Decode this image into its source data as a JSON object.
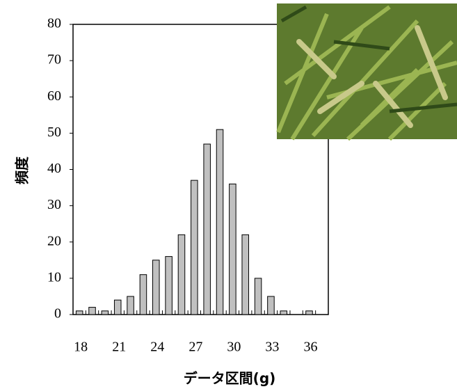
{
  "chart_data": {
    "type": "bar",
    "x_label": "データ区間(g)",
    "y_label": "頻度",
    "categories": [
      "18",
      null,
      null,
      "21",
      null,
      null,
      "24",
      null,
      null,
      "27",
      null,
      null,
      "30",
      null,
      null,
      "33",
      null,
      null,
      "36",
      null
    ],
    "values": [
      1,
      2,
      1,
      4,
      5,
      11,
      15,
      16,
      22,
      37,
      47,
      51,
      36,
      22,
      10,
      5,
      1,
      0,
      1,
      0
    ],
    "color": "#c0c0c0",
    "ylim": [
      0,
      80
    ],
    "yticks": [
      0,
      10,
      20,
      30,
      40,
      50,
      60,
      70,
      80
    ],
    "grid": false
  }
}
